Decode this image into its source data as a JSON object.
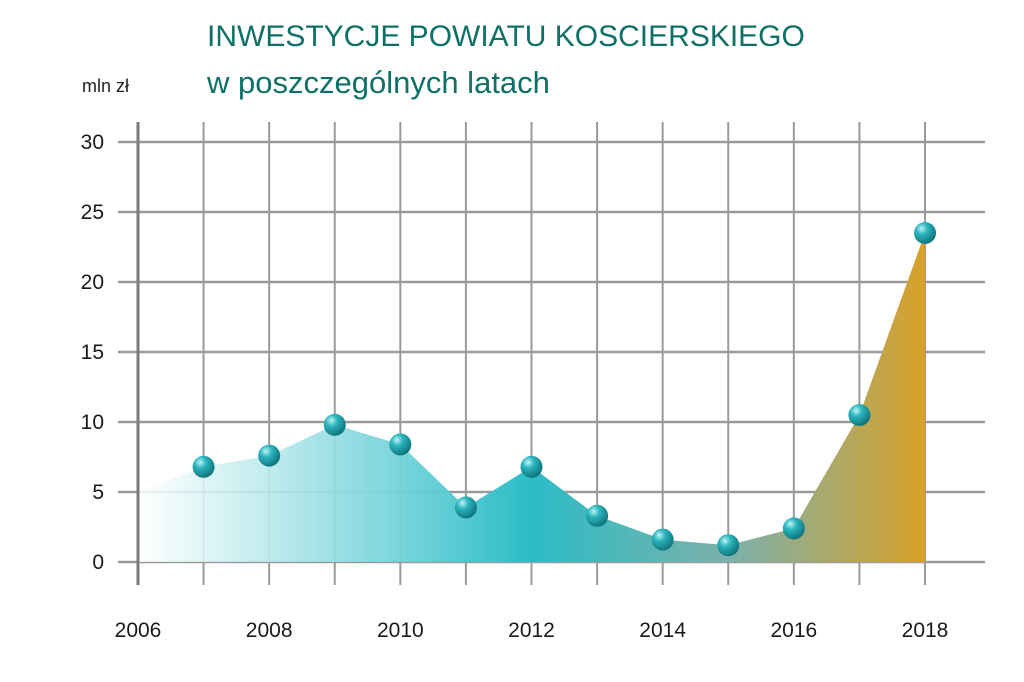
{
  "chart_data": {
    "type": "area",
    "title": "INWESTYCJE POWIATU KOSCIERSKIEGO",
    "subtitle": "w poszczególnych latach",
    "ylabel": "mln zł",
    "xlabel": "",
    "x_ticks": [
      2006,
      2008,
      2010,
      2012,
      2014,
      2016,
      2018
    ],
    "y_ticks": [
      0,
      5,
      10,
      15,
      20,
      25,
      30
    ],
    "xlim": [
      2006,
      2018.9
    ],
    "ylim": [
      0,
      30
    ],
    "grid": true,
    "series": [
      {
        "x": [
          2006,
          2007,
          2008,
          2009,
          2010,
          2011,
          2012,
          2013,
          2014,
          2015,
          2016,
          2017,
          2018
        ],
        "values": [
          5.0,
          6.8,
          7.6,
          9.8,
          8.4,
          3.9,
          6.8,
          3.3,
          1.6,
          1.2,
          2.4,
          10.5,
          23.5
        ]
      }
    ],
    "colors": {
      "fill_start": "#ffffff",
      "fill_mid": "#2bbcc6",
      "fill_end": "#d9a12a",
      "grid": "#9a9a9a",
      "title": "#0f7066",
      "marker": "#1fa9b2"
    }
  }
}
